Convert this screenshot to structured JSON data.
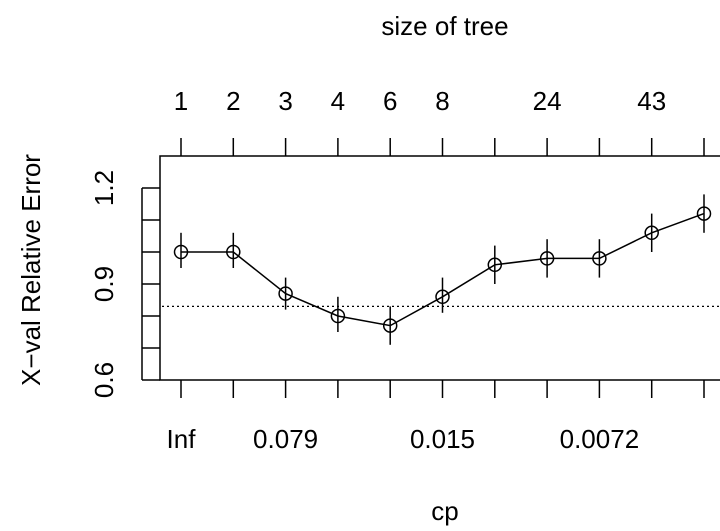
{
  "chart_data": {
    "type": "line",
    "title": "size of tree",
    "xlabel": "cp",
    "ylabel": "X−val Relative Error",
    "x_index": [
      1,
      2,
      3,
      4,
      5,
      6,
      7,
      8,
      9,
      10,
      11
    ],
    "bottom_tick_labels": [
      "Inf",
      "",
      "0.079",
      "",
      "",
      "0.015",
      "",
      "",
      "0.0072",
      "",
      ""
    ],
    "top_tick_labels": [
      "1",
      "2",
      "3",
      "4",
      "6",
      "8",
      "",
      "24",
      "",
      "43",
      ""
    ],
    "y_ticks": [
      "0.6",
      "0.9",
      "1.2"
    ],
    "y_tick_values": [
      0.6,
      0.7,
      0.8,
      0.9,
      1.0,
      1.1,
      1.2
    ],
    "ylim": [
      0.6,
      1.3
    ],
    "series": [
      {
        "values": [
          1.0,
          1.0,
          0.87,
          0.8,
          0.77,
          0.86,
          0.96,
          0.98,
          0.98,
          1.06,
          1.12
        ],
        "error_low": [
          0.95,
          0.95,
          0.82,
          0.75,
          0.71,
          0.81,
          0.9,
          0.92,
          0.92,
          1.0,
          1.06
        ],
        "error_high": [
          1.06,
          1.06,
          0.92,
          0.86,
          0.83,
          0.92,
          1.02,
          1.04,
          1.04,
          1.12,
          1.18
        ]
      }
    ],
    "reference_line": {
      "y": 0.83,
      "style": "dotted"
    },
    "grid": false
  }
}
